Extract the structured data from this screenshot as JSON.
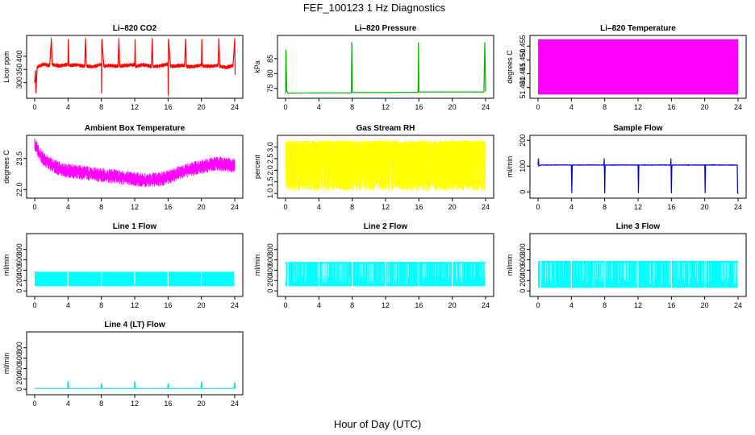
{
  "figure_title": "FEF_100123  1 Hz Diagnostics",
  "xlabel": "Hour of Day (UTC)",
  "chart_data": [
    {
      "type": "line",
      "title": "Li–820 CO2",
      "ylabel": "Licor ppm",
      "color": "#ff0000",
      "xlim": [
        0,
        24
      ],
      "ylim": [
        250,
        470
      ],
      "xticks": [
        "0",
        "4",
        "8",
        "12",
        "16",
        "20",
        "24"
      ],
      "yticks": [
        {
          "v": 300,
          "t": "300"
        },
        {
          "v": 350,
          "t": "350"
        },
        {
          "v": 400,
          "t": "400"
        }
      ],
      "series": [
        {
          "x": [
            0,
            0.1,
            0.15,
            0.3,
            1,
            1.8,
            2,
            2.1,
            3,
            4,
            4.05,
            4.1,
            5,
            6,
            6.1,
            6.2,
            7,
            8,
            8.02,
            8.05,
            8.3,
            9,
            10,
            10.1,
            10.2,
            11,
            12,
            12.05,
            12.1,
            13,
            14,
            14.1,
            14.2,
            15,
            16,
            16.02,
            16.05,
            16.3,
            17,
            18,
            18.1,
            18.2,
            19,
            20,
            20.05,
            20.1,
            21,
            22,
            22.1,
            22.2,
            23,
            23.8,
            24,
            24.05
          ],
          "y": [
            300,
            345,
            260,
            360,
            370,
            365,
            465,
            368,
            364,
            370,
            465,
            365,
            368,
            362,
            465,
            364,
            360,
            370,
            260,
            465,
            362,
            366,
            362,
            465,
            362,
            366,
            368,
            465,
            362,
            368,
            362,
            465,
            360,
            364,
            370,
            255,
            465,
            362,
            364,
            366,
            465,
            362,
            360,
            368,
            465,
            364,
            362,
            366,
            465,
            362,
            358,
            365,
            465,
            330
          ]
        }
      ],
      "noise": 8,
      "dens": 1
    },
    {
      "type": "line",
      "title": "Li–820 Pressure",
      "ylabel": "kPa",
      "color": "#00b000",
      "xlim": [
        0,
        24
      ],
      "ylim": [
        72.5,
        92
      ],
      "xticks": [
        "0",
        "4",
        "8",
        "12",
        "16",
        "20",
        "24"
      ],
      "yticks": [
        {
          "v": 75,
          "t": "75"
        },
        {
          "v": 80,
          "t": "80"
        },
        {
          "v": 85,
          "t": "85"
        }
      ],
      "series": [
        {
          "x": [
            0,
            0.05,
            0.1,
            0.15,
            0.3,
            4,
            7.9,
            7.95,
            8.0,
            8.1,
            12,
            15.9,
            15.95,
            16,
            16.1,
            20,
            23.8,
            23.9,
            24.0
          ],
          "y": [
            73.5,
            88,
            80,
            74,
            73.4,
            73.5,
            73.5,
            90.5,
            74,
            73.6,
            73.6,
            73.7,
            90.5,
            74,
            73.8,
            73.8,
            73.8,
            90.5,
            74
          ]
        }
      ],
      "noise": 0.15,
      "dens": 0
    },
    {
      "type": "area",
      "title": "Li–820 Temperature",
      "ylabel": "degrees C",
      "color": "#ff00ff",
      "xlim": [
        0,
        24
      ],
      "ylim": [
        51.437,
        51.458
      ],
      "xticks": [
        "0",
        "4",
        "8",
        "12",
        "16",
        "20",
        "24"
      ],
      "yticks": [
        {
          "v": 51.44,
          "t": "51.440"
        },
        {
          "v": 51.445,
          "t": "51.445"
        },
        {
          "v": 51.45,
          "t": "51.450"
        },
        {
          "v": 51.455,
          "t": "51.455"
        }
      ],
      "series": [
        {
          "x": [
            0,
            24
          ],
          "y_low": [
            51.4375,
            51.4375
          ],
          "y_high": [
            51.4575,
            51.4575
          ]
        }
      ]
    },
    {
      "type": "line",
      "title": "Ambient Box Temperature",
      "ylabel": "degrees C",
      "color": "#ff00ff",
      "xlim": [
        0,
        24
      ],
      "ylim": [
        21.7,
        24.5
      ],
      "xticks": [
        "0",
        "4",
        "8",
        "12",
        "16",
        "20",
        "24"
      ],
      "yticks": [
        {
          "v": 22.0,
          "t": "22.0"
        },
        {
          "v": 23.5,
          "t": "23.5"
        }
      ],
      "series": [
        {
          "x": [
            0,
            0.5,
            1,
            2,
            3,
            4,
            6,
            8,
            10,
            12,
            13,
            14,
            15,
            16,
            17,
            18,
            19,
            20,
            21,
            22,
            23,
            24
          ],
          "y": [
            24.2,
            23.8,
            23.5,
            23.2,
            23.0,
            22.9,
            22.8,
            22.7,
            22.6,
            22.5,
            22.45,
            22.45,
            22.5,
            22.6,
            22.75,
            22.9,
            23.0,
            23.1,
            23.2,
            23.25,
            23.2,
            23.15
          ]
        }
      ],
      "noise": 0.35,
      "dens": 1
    },
    {
      "type": "line",
      "title": "Gas Stream RH",
      "ylabel": "percent",
      "color": "#ffff00",
      "xlim": [
        0,
        24
      ],
      "ylim": [
        0.9,
        3.4
      ],
      "xticks": [
        "0",
        "4",
        "8",
        "12",
        "16",
        "20",
        "24"
      ],
      "yticks": [
        {
          "v": 1.0,
          "t": "1.0"
        },
        {
          "v": 1.5,
          "t": "1.5"
        },
        {
          "v": 2.0,
          "t": "2.0"
        },
        {
          "v": 2.5,
          "t": "2.5"
        },
        {
          "v": 3.0,
          "t": "3.0"
        }
      ],
      "series": [
        {
          "x": [
            0,
            24
          ],
          "y_low": [
            1.1,
            1.1
          ],
          "y_high": [
            3.3,
            3.3
          ]
        }
      ],
      "noise": 0,
      "dens": 1,
      "band": true
    },
    {
      "type": "line",
      "title": "Sample Flow",
      "ylabel": "ml/min",
      "color": "#0000dd",
      "xlim": [
        0,
        24
      ],
      "ylim": [
        -15,
        210
      ],
      "xticks": [
        "0",
        "4",
        "8",
        "12",
        "16",
        "20",
        "24"
      ],
      "yticks": [
        {
          "v": 0,
          "t": "0"
        },
        {
          "v": 100,
          "t": "100"
        },
        {
          "v": 200,
          "t": "200"
        }
      ],
      "series": [
        {
          "x": [
            0,
            0.05,
            0.1,
            0.3,
            4,
            4.05,
            4.1,
            4.15,
            7.9,
            7.95,
            8.0,
            8.05,
            8.1,
            12,
            12.05,
            12.1,
            15.9,
            15.95,
            16,
            16.05,
            16.1,
            20,
            20.05,
            20.1,
            23.9,
            23.95,
            24
          ],
          "y": [
            105,
            130,
            100,
            104,
            104,
            -5,
            100,
            104,
            104,
            130,
            -5,
            100,
            104,
            104,
            -5,
            104,
            104,
            130,
            -5,
            100,
            104,
            104,
            -5,
            104,
            104,
            -5,
            -5
          ]
        }
      ],
      "noise": 3,
      "dens": 0
    },
    {
      "type": "area",
      "title": "Line 1 Flow",
      "ylabel": "ml/min",
      "color": "#00ffff",
      "xlim": [
        0,
        24
      ],
      "ylim": [
        -60,
        1060
      ],
      "xticks": [
        "0",
        "4",
        "8",
        "12",
        "16",
        "20",
        "24"
      ],
      "yticks": [
        {
          "v": 0,
          "t": "0"
        },
        {
          "v": 200,
          "t": "200"
        },
        {
          "v": 400,
          "t": "400"
        },
        {
          "v": 600,
          "t": "600"
        },
        {
          "v": 800,
          "t": "800"
        }
      ],
      "series": [
        {
          "x": [
            0,
            24
          ],
          "y_low": [
            90,
            90
          ],
          "y_high": [
            370,
            370
          ]
        }
      ],
      "gaps": [
        4,
        8,
        12,
        16,
        20,
        24
      ]
    },
    {
      "type": "area",
      "title": "Line 2 Flow",
      "ylabel": "ml/min",
      "color": "#00ffff",
      "xlim": [
        0,
        24
      ],
      "ylim": [
        -60,
        1060
      ],
      "xticks": [
        "0",
        "4",
        "8",
        "12",
        "16",
        "20",
        "24"
      ],
      "yticks": [
        {
          "v": 0,
          "t": "0"
        },
        {
          "v": 200,
          "t": "200"
        },
        {
          "v": 400,
          "t": "400"
        },
        {
          "v": 600,
          "t": "600"
        },
        {
          "v": 800,
          "t": "800"
        }
      ],
      "series": [
        {
          "x": [
            0,
            24
          ],
          "y_low": [
            90,
            90
          ],
          "y_high": [
            560,
            560
          ]
        }
      ],
      "gaps": [
        0.3,
        4,
        8,
        12,
        16,
        20,
        24
      ],
      "streaks": true
    },
    {
      "type": "area",
      "title": "Line 3 Flow",
      "ylabel": "ml/min",
      "color": "#00ffff",
      "xlim": [
        0,
        24
      ],
      "ylim": [
        -60,
        1060
      ],
      "xticks": [
        "0",
        "4",
        "8",
        "12",
        "16",
        "20",
        "24"
      ],
      "yticks": [
        {
          "v": 0,
          "t": "0"
        },
        {
          "v": 200,
          "t": "200"
        },
        {
          "v": 400,
          "t": "400"
        },
        {
          "v": 600,
          "t": "600"
        },
        {
          "v": 800,
          "t": "800"
        }
      ],
      "series": [
        {
          "x": [
            0,
            24
          ],
          "y_low": [
            60,
            60
          ],
          "y_high": [
            580,
            580
          ]
        }
      ],
      "gaps": [
        0.3,
        4,
        8,
        12,
        16,
        20,
        24
      ],
      "streaks": true
    },
    {
      "type": "line",
      "title": "Line 4 (LT) Flow",
      "ylabel": "ml/min",
      "color": "#00e0e0",
      "xlim": [
        0,
        24
      ],
      "ylim": [
        -60,
        1060
      ],
      "xticks": [
        "0",
        "4",
        "8",
        "12",
        "16",
        "20",
        "24"
      ],
      "yticks": [
        {
          "v": 0,
          "t": "0"
        },
        {
          "v": 200,
          "t": "200"
        },
        {
          "v": 400,
          "t": "400"
        },
        {
          "v": 600,
          "t": "600"
        },
        {
          "v": 800,
          "t": "800"
        }
      ],
      "series": [
        {
          "x": [
            0,
            3.95,
            4.0,
            4.1,
            7.95,
            8.0,
            8.1,
            11.95,
            12.0,
            12.1,
            15.95,
            16.0,
            16.1,
            19.95,
            20.0,
            20.1,
            23.95,
            24.0,
            24.1
          ],
          "y": [
            15,
            15,
            150,
            15,
            15,
            110,
            15,
            15,
            150,
            15,
            15,
            110,
            15,
            15,
            150,
            15,
            15,
            130,
            15
          ]
        }
      ],
      "noise": 0,
      "dens": 0
    }
  ]
}
